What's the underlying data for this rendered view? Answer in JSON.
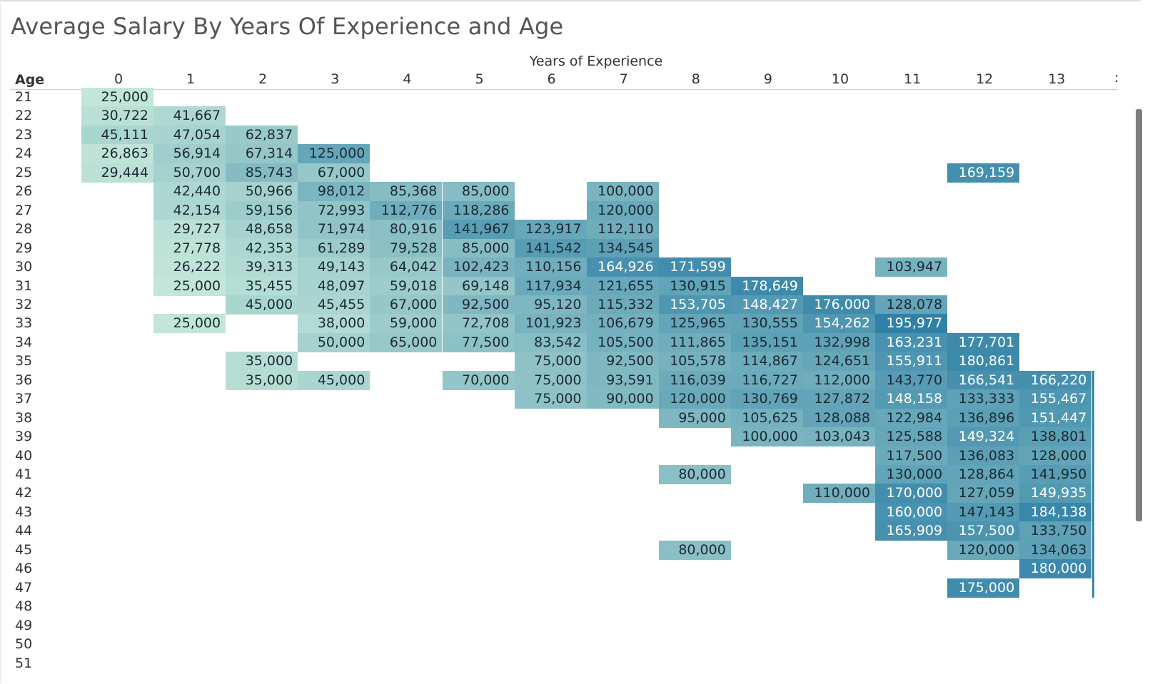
{
  "title": "Average Salary By Years Of Experience and Age",
  "chart_data": {
    "type": "heatmap",
    "title": "Average Salary By Years Of Experience and Age",
    "xlabel": "Years of Experience",
    "ylabel": "Age",
    "x_categories": [
      "0",
      "1",
      "2",
      "3",
      "4",
      "5",
      "6",
      "7",
      "8",
      "9",
      "10",
      "11",
      "12",
      "13"
    ],
    "y_categories": [
      "21",
      "22",
      "23",
      "24",
      "25",
      "26",
      "27",
      "28",
      "29",
      "30",
      "31",
      "32",
      "33",
      "34",
      "35",
      "36",
      "37",
      "38",
      "39",
      "40",
      "41",
      "42",
      "43",
      "44",
      "45",
      "46",
      "47",
      "48",
      "49",
      "50",
      "51"
    ],
    "color_scale": {
      "low": "#c2e6d8",
      "high": "#2d7fa6"
    },
    "value_range": [
      25000,
      200000
    ],
    "cells": [
      {
        "age": "21",
        "exp": 0,
        "value": 25000,
        "label": "25,000"
      },
      {
        "age": "22",
        "exp": 0,
        "value": 30722,
        "label": "30,722"
      },
      {
        "age": "22",
        "exp": 1,
        "value": 41667,
        "label": "41,667"
      },
      {
        "age": "23",
        "exp": 0,
        "value": 45111,
        "label": "45,111"
      },
      {
        "age": "23",
        "exp": 1,
        "value": 47054,
        "label": "47,054"
      },
      {
        "age": "23",
        "exp": 2,
        "value": 62837,
        "label": "62,837"
      },
      {
        "age": "24",
        "exp": 0,
        "value": 26863,
        "label": "26,863"
      },
      {
        "age": "24",
        "exp": 1,
        "value": 56914,
        "label": "56,914"
      },
      {
        "age": "24",
        "exp": 2,
        "value": 67314,
        "label": "67,314"
      },
      {
        "age": "24",
        "exp": 3,
        "value": 125000,
        "label": "125,000"
      },
      {
        "age": "25",
        "exp": 0,
        "value": 29444,
        "label": "29,444"
      },
      {
        "age": "25",
        "exp": 1,
        "value": 50700,
        "label": "50,700"
      },
      {
        "age": "25",
        "exp": 2,
        "value": 85743,
        "label": "85,743"
      },
      {
        "age": "25",
        "exp": 3,
        "value": 67000,
        "label": "67,000"
      },
      {
        "age": "25",
        "exp": 12,
        "value": 169159,
        "label": "169,159"
      },
      {
        "age": "26",
        "exp": 1,
        "value": 42440,
        "label": "42,440"
      },
      {
        "age": "26",
        "exp": 2,
        "value": 50966,
        "label": "50,966"
      },
      {
        "age": "26",
        "exp": 3,
        "value": 98012,
        "label": "98,012"
      },
      {
        "age": "26",
        "exp": 4,
        "value": 85368,
        "label": "85,368"
      },
      {
        "age": "26",
        "exp": 5,
        "value": 85000,
        "label": "85,000"
      },
      {
        "age": "26",
        "exp": 7,
        "value": 100000,
        "label": "100,000"
      },
      {
        "age": "27",
        "exp": 1,
        "value": 42154,
        "label": "42,154"
      },
      {
        "age": "27",
        "exp": 2,
        "value": 59156,
        "label": "59,156"
      },
      {
        "age": "27",
        "exp": 3,
        "value": 72993,
        "label": "72,993"
      },
      {
        "age": "27",
        "exp": 4,
        "value": 112776,
        "label": "112,776"
      },
      {
        "age": "27",
        "exp": 5,
        "value": 118286,
        "label": "118,286"
      },
      {
        "age": "27",
        "exp": 7,
        "value": 120000,
        "label": "120,000"
      },
      {
        "age": "28",
        "exp": 1,
        "value": 29727,
        "label": "29,727"
      },
      {
        "age": "28",
        "exp": 2,
        "value": 48658,
        "label": "48,658"
      },
      {
        "age": "28",
        "exp": 3,
        "value": 71974,
        "label": "71,974"
      },
      {
        "age": "28",
        "exp": 4,
        "value": 80916,
        "label": "80,916"
      },
      {
        "age": "28",
        "exp": 5,
        "value": 141967,
        "label": "141,967"
      },
      {
        "age": "28",
        "exp": 6,
        "value": 123917,
        "label": "123,917"
      },
      {
        "age": "28",
        "exp": 7,
        "value": 112110,
        "label": "112,110"
      },
      {
        "age": "29",
        "exp": 1,
        "value": 27778,
        "label": "27,778"
      },
      {
        "age": "29",
        "exp": 2,
        "value": 42353,
        "label": "42,353"
      },
      {
        "age": "29",
        "exp": 3,
        "value": 61289,
        "label": "61,289"
      },
      {
        "age": "29",
        "exp": 4,
        "value": 79528,
        "label": "79,528"
      },
      {
        "age": "29",
        "exp": 5,
        "value": 85000,
        "label": "85,000"
      },
      {
        "age": "29",
        "exp": 6,
        "value": 141542,
        "label": "141,542"
      },
      {
        "age": "29",
        "exp": 7,
        "value": 134545,
        "label": "134,545"
      },
      {
        "age": "30",
        "exp": 1,
        "value": 26222,
        "label": "26,222"
      },
      {
        "age": "30",
        "exp": 2,
        "value": 39313,
        "label": "39,313"
      },
      {
        "age": "30",
        "exp": 3,
        "value": 49143,
        "label": "49,143"
      },
      {
        "age": "30",
        "exp": 4,
        "value": 64042,
        "label": "64,042"
      },
      {
        "age": "30",
        "exp": 5,
        "value": 102423,
        "label": "102,423"
      },
      {
        "age": "30",
        "exp": 6,
        "value": 110156,
        "label": "110,156"
      },
      {
        "age": "30",
        "exp": 7,
        "value": 164926,
        "label": "164,926"
      },
      {
        "age": "30",
        "exp": 8,
        "value": 171599,
        "label": "171,599"
      },
      {
        "age": "30",
        "exp": 11,
        "value": 103947,
        "label": "103,947"
      },
      {
        "age": "31",
        "exp": 1,
        "value": 25000,
        "label": "25,000"
      },
      {
        "age": "31",
        "exp": 2,
        "value": 35455,
        "label": "35,455"
      },
      {
        "age": "31",
        "exp": 3,
        "value": 48097,
        "label": "48,097"
      },
      {
        "age": "31",
        "exp": 4,
        "value": 59018,
        "label": "59,018"
      },
      {
        "age": "31",
        "exp": 5,
        "value": 69148,
        "label": "69,148"
      },
      {
        "age": "31",
        "exp": 6,
        "value": 117934,
        "label": "117,934"
      },
      {
        "age": "31",
        "exp": 7,
        "value": 121655,
        "label": "121,655"
      },
      {
        "age": "31",
        "exp": 8,
        "value": 130915,
        "label": "130,915"
      },
      {
        "age": "31",
        "exp": 9,
        "value": 178649,
        "label": "178,649"
      },
      {
        "age": "32",
        "exp": 2,
        "value": 45000,
        "label": "45,000"
      },
      {
        "age": "32",
        "exp": 3,
        "value": 45455,
        "label": "45,455"
      },
      {
        "age": "32",
        "exp": 4,
        "value": 67000,
        "label": "67,000"
      },
      {
        "age": "32",
        "exp": 5,
        "value": 92500,
        "label": "92,500"
      },
      {
        "age": "32",
        "exp": 6,
        "value": 95120,
        "label": "95,120"
      },
      {
        "age": "32",
        "exp": 7,
        "value": 115332,
        "label": "115,332"
      },
      {
        "age": "32",
        "exp": 8,
        "value": 153705,
        "label": "153,705"
      },
      {
        "age": "32",
        "exp": 9,
        "value": 148427,
        "label": "148,427"
      },
      {
        "age": "32",
        "exp": 10,
        "value": 176000,
        "label": "176,000"
      },
      {
        "age": "32",
        "exp": 11,
        "value": 128078,
        "label": "128,078"
      },
      {
        "age": "33",
        "exp": 1,
        "value": 25000,
        "label": "25,000"
      },
      {
        "age": "33",
        "exp": 3,
        "value": 38000,
        "label": "38,000"
      },
      {
        "age": "33",
        "exp": 4,
        "value": 59000,
        "label": "59,000"
      },
      {
        "age": "33",
        "exp": 5,
        "value": 72708,
        "label": "72,708"
      },
      {
        "age": "33",
        "exp": 6,
        "value": 101923,
        "label": "101,923"
      },
      {
        "age": "33",
        "exp": 7,
        "value": 106679,
        "label": "106,679"
      },
      {
        "age": "33",
        "exp": 8,
        "value": 125965,
        "label": "125,965"
      },
      {
        "age": "33",
        "exp": 9,
        "value": 130555,
        "label": "130,555"
      },
      {
        "age": "33",
        "exp": 10,
        "value": 154262,
        "label": "154,262"
      },
      {
        "age": "33",
        "exp": 11,
        "value": 195977,
        "label": "195,977"
      },
      {
        "age": "34",
        "exp": 3,
        "value": 50000,
        "label": "50,000"
      },
      {
        "age": "34",
        "exp": 4,
        "value": 65000,
        "label": "65,000"
      },
      {
        "age": "34",
        "exp": 5,
        "value": 77500,
        "label": "77,500"
      },
      {
        "age": "34",
        "exp": 6,
        "value": 83542,
        "label": "83,542"
      },
      {
        "age": "34",
        "exp": 7,
        "value": 105500,
        "label": "105,500"
      },
      {
        "age": "34",
        "exp": 8,
        "value": 111865,
        "label": "111,865"
      },
      {
        "age": "34",
        "exp": 9,
        "value": 135151,
        "label": "135,151"
      },
      {
        "age": "34",
        "exp": 10,
        "value": 132998,
        "label": "132,998"
      },
      {
        "age": "34",
        "exp": 11,
        "value": 163231,
        "label": "163,231"
      },
      {
        "age": "34",
        "exp": 12,
        "value": 177701,
        "label": "177,701"
      },
      {
        "age": "35",
        "exp": 2,
        "value": 35000,
        "label": "35,000"
      },
      {
        "age": "35",
        "exp": 6,
        "value": 75000,
        "label": "75,000"
      },
      {
        "age": "35",
        "exp": 7,
        "value": 92500,
        "label": "92,500"
      },
      {
        "age": "35",
        "exp": 8,
        "value": 105578,
        "label": "105,578"
      },
      {
        "age": "35",
        "exp": 9,
        "value": 114867,
        "label": "114,867"
      },
      {
        "age": "35",
        "exp": 10,
        "value": 124651,
        "label": "124,651"
      },
      {
        "age": "35",
        "exp": 11,
        "value": 155911,
        "label": "155,911"
      },
      {
        "age": "35",
        "exp": 12,
        "value": 180861,
        "label": "180,861"
      },
      {
        "age": "36",
        "exp": 2,
        "value": 35000,
        "label": "35,000"
      },
      {
        "age": "36",
        "exp": 3,
        "value": 45000,
        "label": "45,000"
      },
      {
        "age": "36",
        "exp": 5,
        "value": 70000,
        "label": "70,000"
      },
      {
        "age": "36",
        "exp": 6,
        "value": 75000,
        "label": "75,000"
      },
      {
        "age": "36",
        "exp": 7,
        "value": 93591,
        "label": "93,591"
      },
      {
        "age": "36",
        "exp": 8,
        "value": 116039,
        "label": "116,039"
      },
      {
        "age": "36",
        "exp": 9,
        "value": 116727,
        "label": "116,727"
      },
      {
        "age": "36",
        "exp": 10,
        "value": 112000,
        "label": "112,000"
      },
      {
        "age": "36",
        "exp": 11,
        "value": 143770,
        "label": "143,770"
      },
      {
        "age": "36",
        "exp": 12,
        "value": 166541,
        "label": "166,541"
      },
      {
        "age": "36",
        "exp": 13,
        "value": 166220,
        "label": "166,220"
      },
      {
        "age": "37",
        "exp": 6,
        "value": 75000,
        "label": "75,000"
      },
      {
        "age": "37",
        "exp": 7,
        "value": 90000,
        "label": "90,000"
      },
      {
        "age": "37",
        "exp": 8,
        "value": 120000,
        "label": "120,000"
      },
      {
        "age": "37",
        "exp": 9,
        "value": 130769,
        "label": "130,769"
      },
      {
        "age": "37",
        "exp": 10,
        "value": 127872,
        "label": "127,872"
      },
      {
        "age": "37",
        "exp": 11,
        "value": 148158,
        "label": "148,158"
      },
      {
        "age": "37",
        "exp": 12,
        "value": 133333,
        "label": "133,333"
      },
      {
        "age": "37",
        "exp": 13,
        "value": 155467,
        "label": "155,467"
      },
      {
        "age": "38",
        "exp": 8,
        "value": 95000,
        "label": "95,000"
      },
      {
        "age": "38",
        "exp": 9,
        "value": 105625,
        "label": "105,625"
      },
      {
        "age": "38",
        "exp": 10,
        "value": 128088,
        "label": "128,088"
      },
      {
        "age": "38",
        "exp": 11,
        "value": 122984,
        "label": "122,984"
      },
      {
        "age": "38",
        "exp": 12,
        "value": 136896,
        "label": "136,896"
      },
      {
        "age": "38",
        "exp": 13,
        "value": 151447,
        "label": "151,447"
      },
      {
        "age": "39",
        "exp": 9,
        "value": 100000,
        "label": "100,000"
      },
      {
        "age": "39",
        "exp": 10,
        "value": 103043,
        "label": "103,043"
      },
      {
        "age": "39",
        "exp": 11,
        "value": 125588,
        "label": "125,588"
      },
      {
        "age": "39",
        "exp": 12,
        "value": 149324,
        "label": "149,324"
      },
      {
        "age": "39",
        "exp": 13,
        "value": 138801,
        "label": "138,801"
      },
      {
        "age": "40",
        "exp": 11,
        "value": 117500,
        "label": "117,500"
      },
      {
        "age": "40",
        "exp": 12,
        "value": 136083,
        "label": "136,083"
      },
      {
        "age": "40",
        "exp": 13,
        "value": 128000,
        "label": "128,000"
      },
      {
        "age": "41",
        "exp": 8,
        "value": 80000,
        "label": "80,000"
      },
      {
        "age": "41",
        "exp": 11,
        "value": 130000,
        "label": "130,000"
      },
      {
        "age": "41",
        "exp": 12,
        "value": 128864,
        "label": "128,864"
      },
      {
        "age": "41",
        "exp": 13,
        "value": 141950,
        "label": "141,950"
      },
      {
        "age": "42",
        "exp": 10,
        "value": 110000,
        "label": "110,000"
      },
      {
        "age": "42",
        "exp": 11,
        "value": 170000,
        "label": "170,000"
      },
      {
        "age": "42",
        "exp": 12,
        "value": 127059,
        "label": "127,059"
      },
      {
        "age": "42",
        "exp": 13,
        "value": 149935,
        "label": "149,935"
      },
      {
        "age": "43",
        "exp": 11,
        "value": 160000,
        "label": "160,000"
      },
      {
        "age": "43",
        "exp": 12,
        "value": 147143,
        "label": "147,143"
      },
      {
        "age": "43",
        "exp": 13,
        "value": 184138,
        "label": "184,138"
      },
      {
        "age": "44",
        "exp": 11,
        "value": 165909,
        "label": "165,909"
      },
      {
        "age": "44",
        "exp": 12,
        "value": 157500,
        "label": "157,500"
      },
      {
        "age": "44",
        "exp": 13,
        "value": 133750,
        "label": "133,750"
      },
      {
        "age": "45",
        "exp": 8,
        "value": 80000,
        "label": "80,000"
      },
      {
        "age": "45",
        "exp": 12,
        "value": 120000,
        "label": "120,000"
      },
      {
        "age": "45",
        "exp": 13,
        "value": 134063,
        "label": "134,063"
      },
      {
        "age": "46",
        "exp": 13,
        "value": 180000,
        "label": "180,000"
      },
      {
        "age": "47",
        "exp": 12,
        "value": 175000,
        "label": "175,000"
      }
    ],
    "legend": "none",
    "grid": false
  }
}
